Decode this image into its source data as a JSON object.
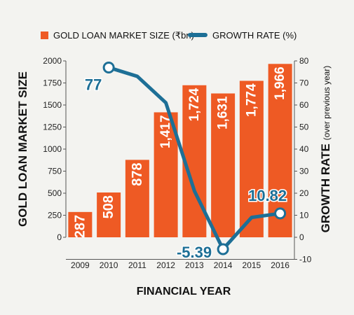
{
  "chart_data": {
    "type": "bar",
    "categories": [
      "2009",
      "2010",
      "2011",
      "2012",
      "2013",
      "2014",
      "2015",
      "2016"
    ],
    "series": [
      {
        "name": "GOLD LOAN MARKET SIZE (₹bn)",
        "type": "bar",
        "axis": "left",
        "values": [
          287,
          508,
          878,
          1417,
          1724,
          1631,
          1774,
          1966
        ],
        "labels": [
          "287",
          "508",
          "878",
          "1,417",
          "1,724",
          "1,631",
          "1,774",
          "1,966"
        ]
      },
      {
        "name": "GROWTH RATE (%)",
        "type": "line",
        "axis": "right",
        "x": [
          "2010",
          "2011",
          "2012",
          "2013",
          "2014",
          "2015",
          "2016"
        ],
        "values": [
          77,
          73,
          61,
          21,
          -5.39,
          9,
          10.82
        ]
      }
    ],
    "point_labels": [
      {
        "category": "2010",
        "text": "77"
      },
      {
        "category": "2014",
        "text": "-5.39"
      },
      {
        "category": "2016",
        "text": "10.82"
      }
    ],
    "xlabel": "FINANCIAL YEAR",
    "ylabel_left": "GOLD LOAN MARKET SIZE",
    "ylabel_right_main": "GROWTH RATE",
    "ylabel_right_sub": "(over previous year)",
    "ylim_left": [
      0,
      2000
    ],
    "yticks_left": [
      "0",
      "250",
      "500",
      "750",
      "1000",
      "1250",
      "1500",
      "1750",
      "2000"
    ],
    "ylim_right": [
      -10,
      80
    ],
    "yticks_right": [
      "-10",
      "0",
      "10",
      "20",
      "30",
      "40",
      "50",
      "60",
      "70",
      "80"
    ],
    "legend_position": "top",
    "grid": false
  },
  "colors": {
    "bar": "#ee5a24",
    "line": "#1d6f96",
    "marker_fill": "#ffffff",
    "axis": "#555555",
    "background": "#f3f3f0"
  }
}
